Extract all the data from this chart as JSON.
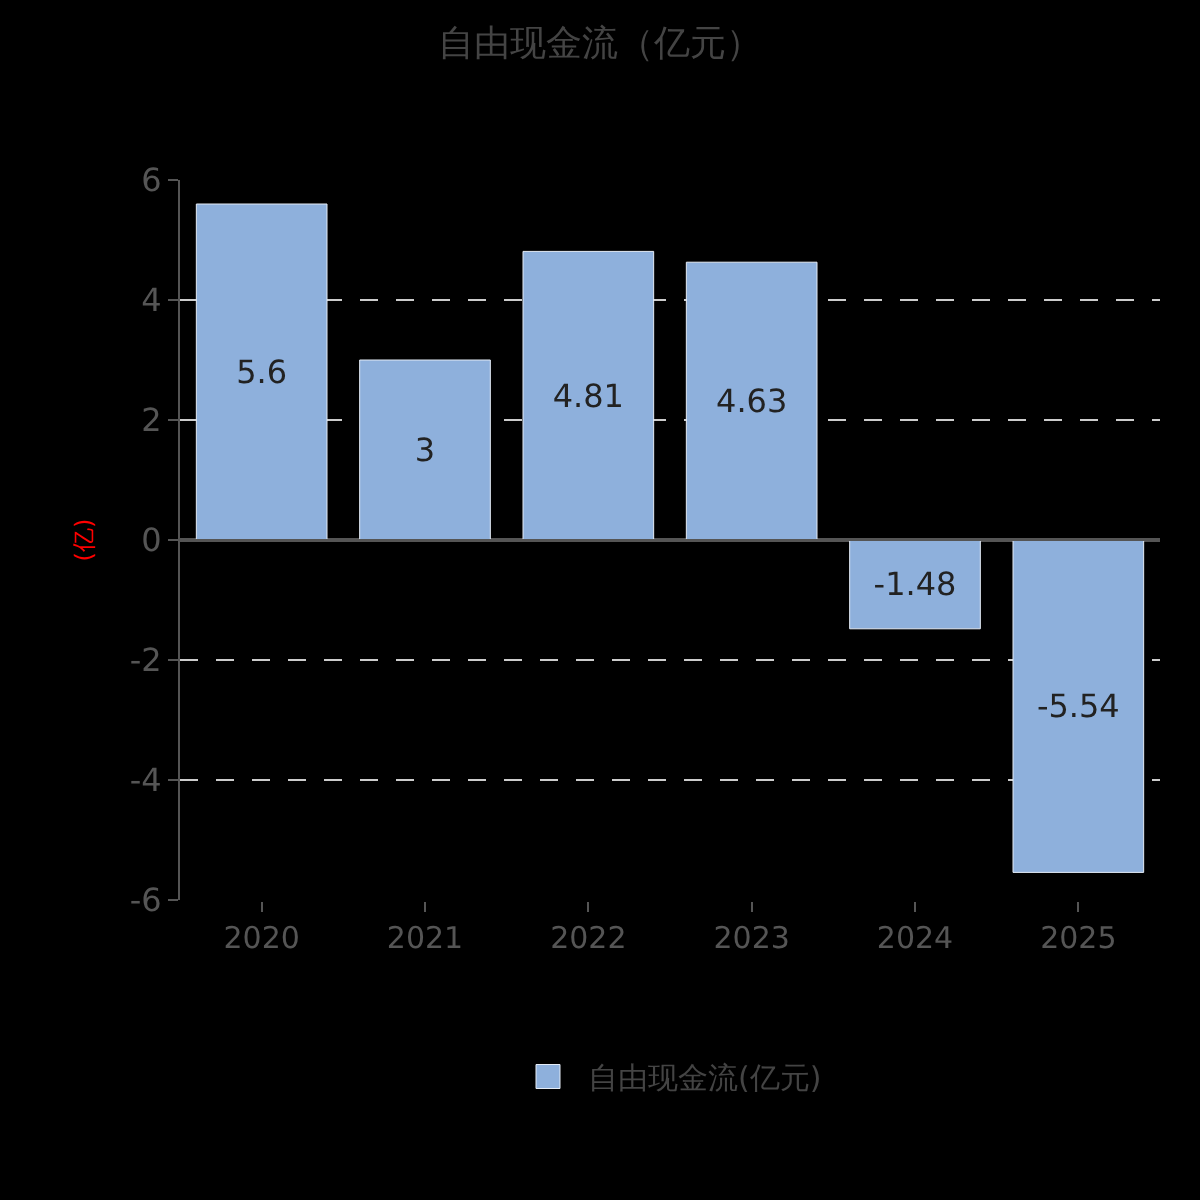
{
  "chart_data": {
    "type": "bar",
    "title": "自由现金流（亿元）",
    "ylabel": "(亿)",
    "categories": [
      "2020",
      "2021",
      "2022",
      "2023",
      "2024",
      "2025"
    ],
    "series": [
      {
        "name": "自由现金流(亿元)",
        "color": "#8eb0dc",
        "values": [
          5.6,
          3,
          4.81,
          4.63,
          -1.48,
          -5.54
        ]
      }
    ],
    "data_labels": true,
    "ylim": [
      -6,
      6
    ],
    "yticks": [
      -6,
      -4,
      -2,
      0,
      2,
      4,
      6
    ],
    "grid": "y",
    "legend": "bottom"
  }
}
